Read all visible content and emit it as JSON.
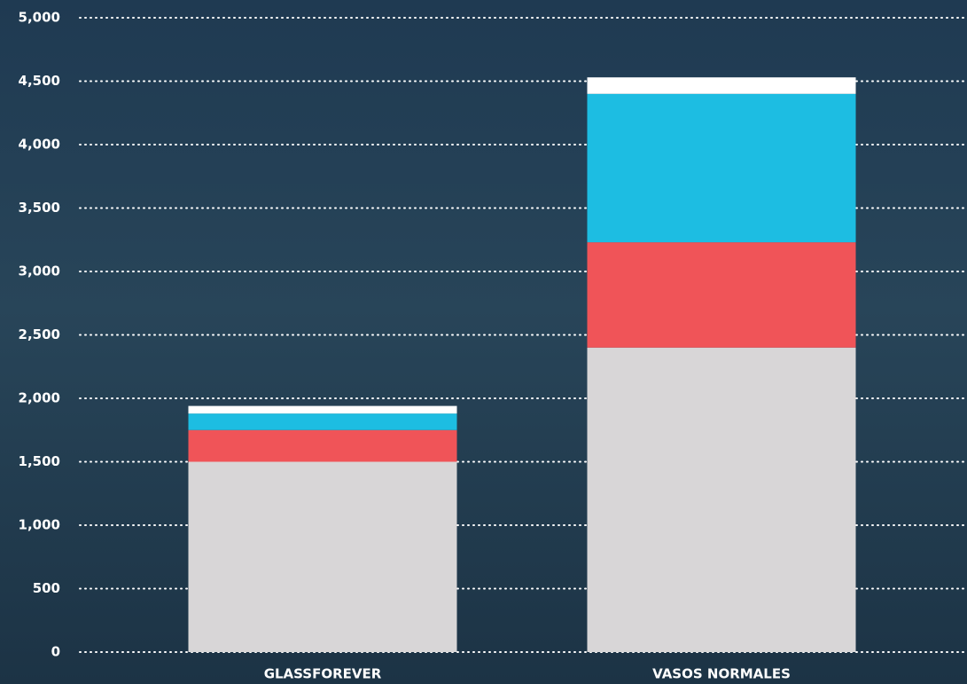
{
  "chart_data": {
    "type": "stacked-bar",
    "categories": [
      "GLASSFOREVER",
      "VASOS NORMALES"
    ],
    "series": [
      {
        "color": "#d8d6d7",
        "values": [
          1500,
          2400
        ]
      },
      {
        "color": "#f05458",
        "values": [
          250,
          830
        ]
      },
      {
        "color": "#1dbde2",
        "values": [
          130,
          1170
        ]
      },
      {
        "color": "#ffffff",
        "values": [
          60,
          130
        ]
      }
    ],
    "ylim": [
      0,
      5000
    ],
    "yticks": [
      0,
      500,
      {
        "value": 1000,
        "label": "1,000"
      },
      {
        "value": 1500,
        "label": "1,500"
      },
      {
        "value": 2000,
        "label": "2,000"
      },
      {
        "value": 2500,
        "label": "2,500"
      },
      {
        "value": 3000,
        "label": "3,000"
      },
      {
        "value": 3500,
        "label": "3,500"
      },
      {
        "value": 4000,
        "label": "4,000"
      },
      {
        "value": 4500,
        "label": "4,500"
      },
      {
        "value": 5000,
        "label": "5,000"
      }
    ],
    "grid": true
  }
}
